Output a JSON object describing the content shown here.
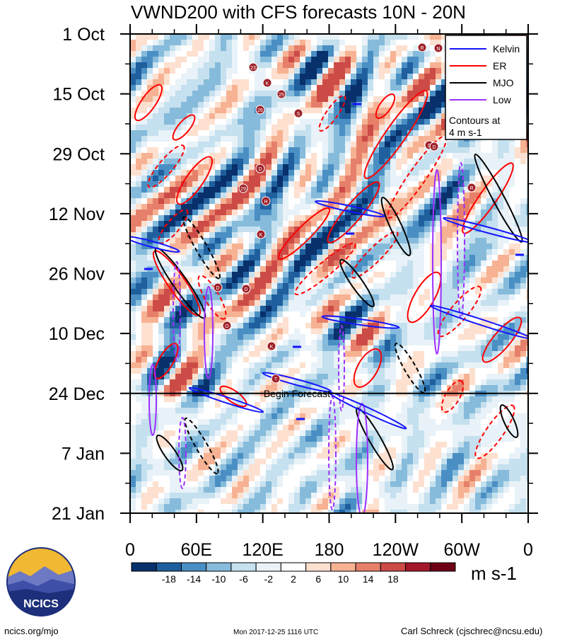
{
  "title": "VWND200 with CFS forecasts 10N - 20N",
  "chart_data": {
    "type": "heatmap",
    "title": "VWND200 with CFS forecasts 10N - 20N",
    "x_axis": {
      "ticks": [
        "0",
        "60E",
        "120E",
        "180",
        "120W",
        "60W",
        "0"
      ],
      "range_deg_east": [
        0,
        360
      ]
    },
    "y_axis": {
      "ticks": [
        "1 Oct",
        "15 Oct",
        "29 Oct",
        "12 Nov",
        "26 Nov",
        "10 Dec",
        "24 Dec",
        "7 Jan",
        "21 Jan"
      ],
      "range": [
        "2017-10-01",
        "2018-01-21"
      ],
      "direction": "time increases downward"
    },
    "colorbar": {
      "levels": [
        -18,
        -14,
        -10,
        -6,
        -2,
        2,
        6,
        10,
        14,
        18
      ],
      "tick_labels": [
        "-18",
        "-14",
        "-10",
        "-6",
        "-2",
        "2",
        "6",
        "10",
        "14",
        "18"
      ],
      "colors": [
        "#08306b",
        "#1f5f9e",
        "#4a8fc4",
        "#86bbdb",
        "#c5e0ee",
        "#e8f2f8",
        "#ffffff",
        "#fde0cf",
        "#f6b293",
        "#e6806a",
        "#cc4b47",
        "#a3172a",
        "#6e0016"
      ],
      "units": "m s-1"
    },
    "legend": {
      "placement": "top-right",
      "entries": [
        {
          "label": "Kelvin",
          "color": "#1515ff"
        },
        {
          "label": "ER",
          "color": "#ff0000"
        },
        {
          "label": "MJO",
          "color": "#000000"
        },
        {
          "label": "Low",
          "color": "#9b30ff"
        }
      ],
      "note": "Contours at 4 m s-1"
    },
    "annotations": [
      "Begin Forecast"
    ],
    "forecast_start": "24 Dec",
    "storm_labels": [
      "R",
      "N",
      "23",
      "K",
      "25",
      "26",
      "S",
      "S",
      "D",
      "D",
      "29",
      "H",
      "R",
      "K",
      "D",
      "D",
      "O",
      "K",
      "T"
    ]
  },
  "footer": {
    "left": "ncics.org/mjo",
    "middle": "Mon 2017-12-25 1116 UTC",
    "right": "Carl Schreck (cjschrec@ncsu.edu)"
  },
  "logo_text": "NCICS"
}
